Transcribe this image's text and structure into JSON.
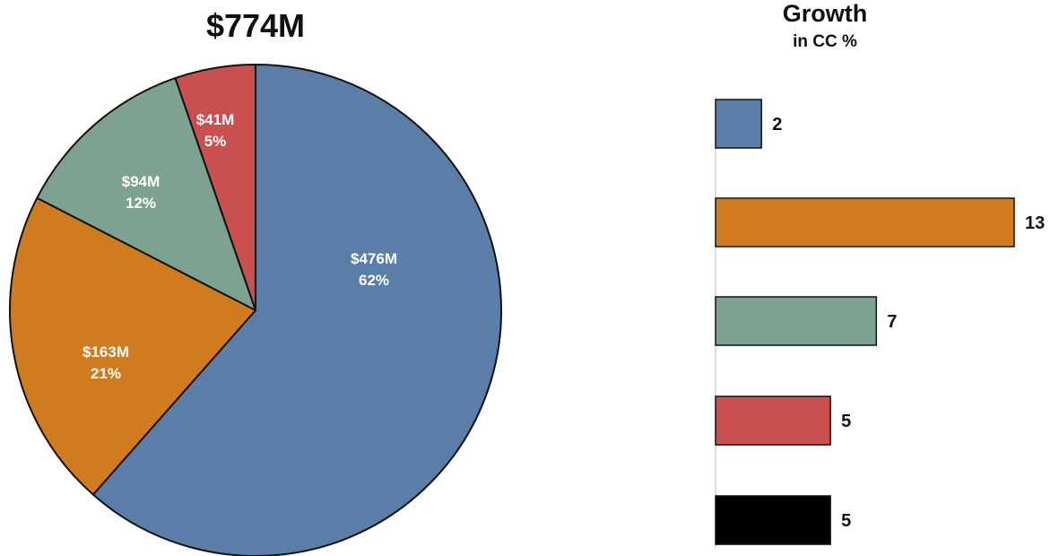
{
  "chart_data": [
    {
      "type": "pie",
      "title": "$774M",
      "slices": [
        {
          "value_label": "$476M",
          "percent_label": "62%",
          "value": 476,
          "color": "#5b7ea9"
        },
        {
          "value_label": "$163M",
          "percent_label": "21%",
          "value": 163,
          "color": "#d07b1d"
        },
        {
          "value_label": "$94M",
          "percent_label": "12%",
          "value": 94,
          "color": "#7ea290"
        },
        {
          "value_label": "$41M",
          "percent_label": "5%",
          "value": 41,
          "color": "#c9504f"
        }
      ]
    },
    {
      "type": "bar",
      "orientation": "horizontal",
      "title": "Growth",
      "subtitle": "in CC %",
      "values": [
        2,
        13,
        7,
        5,
        5
      ],
      "colors": [
        "#5b7ea9",
        "#d07b1d",
        "#7ea290",
        "#c9504f",
        "#000000"
      ],
      "xlim": [
        0,
        13
      ]
    }
  ]
}
